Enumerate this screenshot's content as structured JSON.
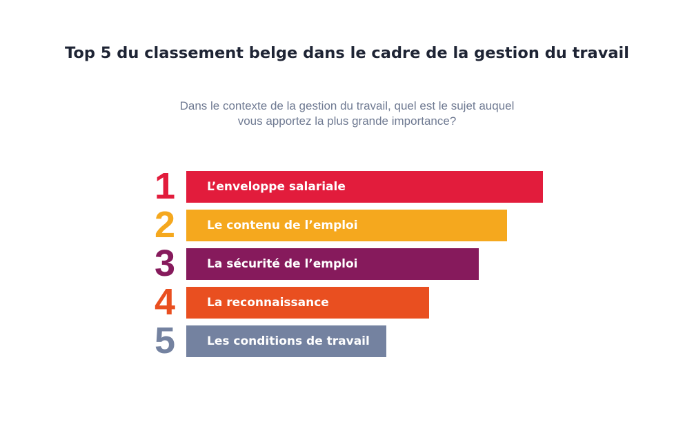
{
  "title": "Top 5 du classement belge dans le cadre de la gestion du travail",
  "subtitle": "Dans le contexte de la gestion du travail, quel est le sujet auquel vous apportez la plus grande importance?",
  "chart_data": {
    "type": "bar",
    "orientation": "horizontal",
    "title": "Top 5 du classement belge dans le cadre de la gestion du travail",
    "subtitle": "Dans le contexte de la gestion du travail, quel est le sujet auquel vous apportez la plus grande importance?",
    "categories": [
      "L’enveloppe salariale",
      "Le contenu de l’emploi",
      "La sécurité de l’emploi",
      "La reconnaissance",
      "Les conditions de travail"
    ],
    "ranks": [
      "1",
      "2",
      "3",
      "4",
      "5"
    ],
    "values": [
      5,
      4.5,
      4.1,
      3.4,
      2.8
    ],
    "colors": [
      "#e21c3c",
      "#f5a81e",
      "#861a5c",
      "#e94f20",
      "#7482a0"
    ],
    "xlim": [
      0,
      5
    ],
    "grid": false,
    "legend": "none"
  }
}
